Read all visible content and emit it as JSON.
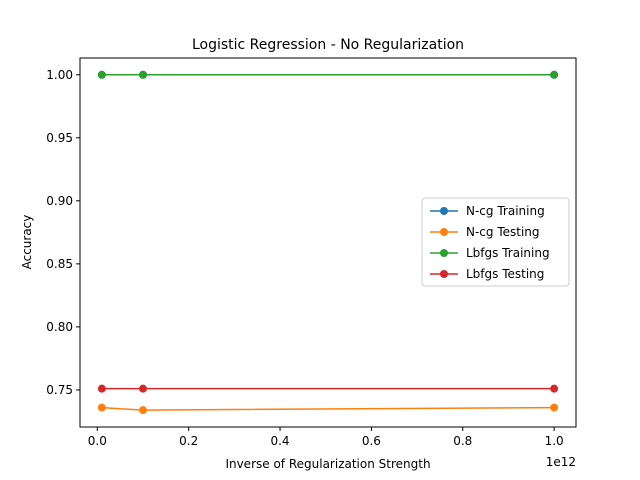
{
  "chart_data": {
    "type": "line",
    "title": "Logistic Regression - No Regularization",
    "xlabel": "Inverse of Regularization Strength",
    "ylabel": "Accuracy",
    "x_offset_label": "1e12",
    "x_scale": 1000000000000.0,
    "xlim": [
      -0.0379,
      1.0479
    ],
    "ylim": [
      0.7206,
      1.0133
    ],
    "x_ticks": [
      0.0,
      0.2,
      0.4,
      0.6,
      0.8,
      1.0
    ],
    "x_tick_labels": [
      "0.0",
      "0.2",
      "0.4",
      "0.6",
      "0.8",
      "1.0"
    ],
    "y_ticks": [
      0.75,
      0.8,
      0.85,
      0.9,
      0.95,
      1.0
    ],
    "y_tick_labels": [
      "0.75",
      "0.80",
      "0.85",
      "0.90",
      "0.95",
      "1.00"
    ],
    "x": [
      0.01,
      0.1,
      1.0
    ],
    "legend_position": "center-right",
    "series": [
      {
        "name": "N-cg Training",
        "color": "#1f77b4",
        "values": [
          1.0,
          1.0,
          1.0
        ]
      },
      {
        "name": "N-cg Testing",
        "color": "#ff7f0e",
        "values": [
          0.736,
          0.734,
          0.736
        ]
      },
      {
        "name": "Lbfgs Training",
        "color": "#2ca02c",
        "values": [
          1.0,
          1.0,
          1.0
        ]
      },
      {
        "name": "Lbfgs Testing",
        "color": "#d62728",
        "values": [
          0.751,
          0.751,
          0.751
        ]
      }
    ]
  }
}
